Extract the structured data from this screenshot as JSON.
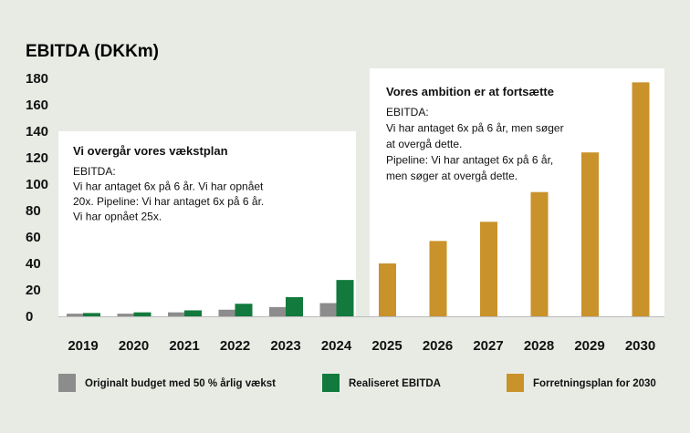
{
  "chart_data": {
    "type": "bar",
    "title": "EBITDA (DKKm)",
    "categories": [
      "2019",
      "2020",
      "2021",
      "2022",
      "2023",
      "2024",
      "2025",
      "2026",
      "2027",
      "2028",
      "2029",
      "2030"
    ],
    "series": [
      {
        "name": "Originalt budget med 50 % årlig vækst",
        "color": "#8c8c8c",
        "values": [
          2,
          2,
          3,
          5,
          7,
          10,
          null,
          null,
          null,
          null,
          null,
          null
        ]
      },
      {
        "name": "Realiseret EBITDA",
        "color": "#127a3c",
        "values": [
          2.5,
          3,
          4.5,
          9.5,
          14.5,
          27.5,
          null,
          null,
          null,
          null,
          null,
          null
        ]
      },
      {
        "name": "Forretningsplan for 2030",
        "color": "#c9922a",
        "values": [
          null,
          null,
          null,
          null,
          null,
          null,
          40,
          57,
          71.5,
          94,
          124,
          177
        ]
      }
    ],
    "ylim": [
      0,
      180
    ],
    "yticks": [
      0,
      20,
      40,
      60,
      80,
      100,
      120,
      140,
      160,
      180
    ],
    "grid": false,
    "legend_position": "bottom",
    "annotations": [
      {
        "title": "Vi overgår vores vækstplan",
        "lines": [
          "EBITDA:",
          "Vi har antaget 6x på 6 år. Vi har opnået",
          "20x. Pipeline: Vi har antaget 6x på 6 år.",
          "Vi har opnået 25x."
        ]
      },
      {
        "title": "Vores ambition er at fortsætte",
        "lines": [
          "EBITDA:",
          "Vi har antaget 6x på 6 år, men søger",
          "at overgå dette.",
          "Pipeline: Vi har antaget 6x på 6 år,",
          "men søger at overgå dette."
        ]
      }
    ]
  }
}
